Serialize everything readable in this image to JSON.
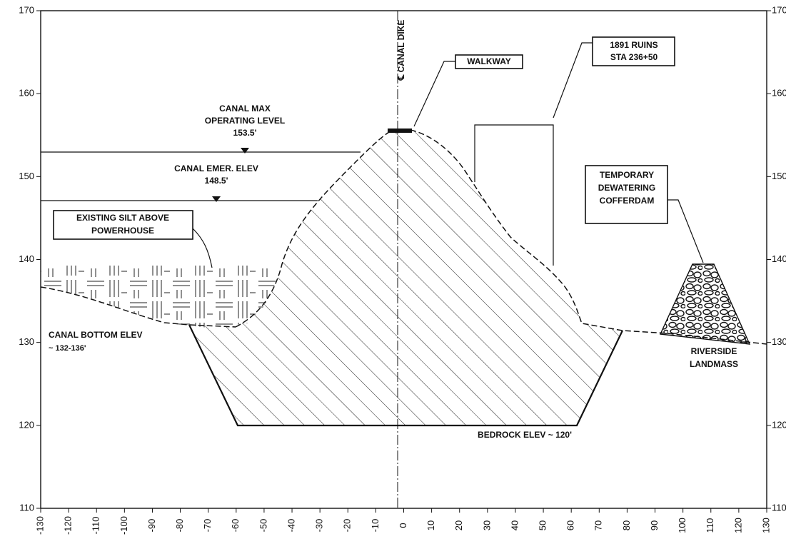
{
  "axes": {
    "xlim": [
      -130,
      130
    ],
    "ylim": [
      110,
      170
    ],
    "xticks": [
      -130,
      -120,
      -110,
      -100,
      -90,
      -80,
      -70,
      -60,
      -50,
      -40,
      -30,
      -20,
      -10,
      0,
      10,
      20,
      30,
      40,
      50,
      60,
      70,
      80,
      90,
      100,
      110,
      120,
      130
    ],
    "yticks": [
      110,
      120,
      130,
      140,
      150,
      160,
      170
    ]
  },
  "annotations": [
    {
      "lines": [
        "℄ CANAL DIKE"
      ]
    },
    {
      "lines": [
        "WALKWAY"
      ]
    },
    {
      "lines": [
        "1891 RUINS",
        "STA 236+50"
      ]
    },
    {
      "lines": [
        "CANAL MAX",
        "OPERATING LEVEL",
        "153.5'"
      ]
    },
    {
      "lines": [
        "CANAL EMER. ELEV",
        "148.5'"
      ]
    },
    {
      "lines": [
        "EXISTING SILT ABOVE",
        "POWERHOUSE"
      ]
    },
    {
      "lines": [
        "TEMPORARY",
        "DEWATERING",
        "COFFERDAM"
      ]
    },
    {
      "lines": [
        "CANAL BOTTOM ELEV",
        "~ 132-136'"
      ]
    },
    {
      "lines": [
        "RIVERSIDE",
        "LANDMASS"
      ]
    },
    {
      "lines": [
        "BEDROCK ELEV ~ 120'"
      ]
    }
  ]
}
